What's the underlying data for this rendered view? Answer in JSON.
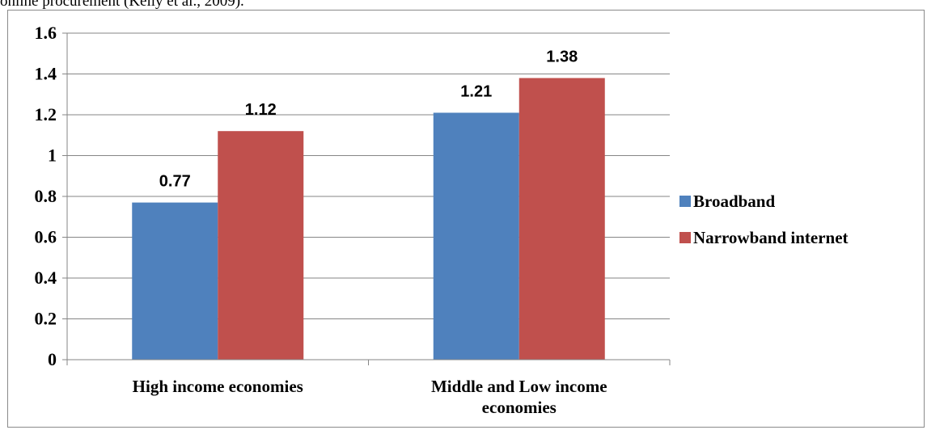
{
  "caption_fragment": "online procurement (Kelly et al., 2009).",
  "chart_data": {
    "type": "bar",
    "title": "",
    "xlabel": "",
    "ylabel": "",
    "categories": [
      [
        "High income economies"
      ],
      [
        "Middle and Low income",
        "economies"
      ]
    ],
    "series": [
      {
        "name": "Broadband",
        "values": [
          0.77,
          1.21
        ],
        "color": "#4f81bd"
      },
      {
        "name": "Narrowband internet",
        "values": [
          1.12,
          1.38
        ],
        "color": "#c0504d"
      }
    ],
    "ylim": [
      0,
      1.6
    ],
    "yticks": [
      {
        "value": 0,
        "label": "0"
      },
      {
        "value": 0.2,
        "label": "0.2"
      },
      {
        "value": 0.4,
        "label": "0.4"
      },
      {
        "value": 0.6,
        "label": "0.6"
      },
      {
        "value": 0.8,
        "label": "0.8"
      },
      {
        "value": 1.0,
        "label": "1"
      },
      {
        "value": 1.2,
        "label": "1.2"
      },
      {
        "value": 1.4,
        "label": "1.4"
      },
      {
        "value": 1.6,
        "label": "1.6"
      }
    ],
    "data_labels": [
      [
        "0.77",
        "1.21"
      ],
      [
        "1.12",
        "1.38"
      ]
    ],
    "grid": true,
    "legend_position": "right",
    "gridline_color": "#868686"
  }
}
